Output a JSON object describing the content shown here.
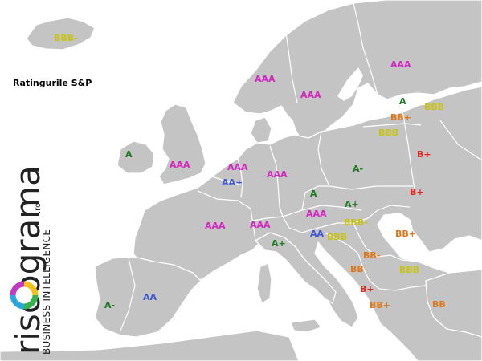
{
  "map": {
    "title": "Ratingurile S&P",
    "colors": {
      "AAA": "#d129c0",
      "AA": "#3e56d6",
      "A": "#1b7a22",
      "BBB": "#c7c217",
      "BB": "#e07818",
      "B": "#e0261e",
      "land": "#c4c4c4",
      "border": "#ffffff"
    },
    "ratings": [
      {
        "country": "Iceland",
        "label": "BBB-",
        "cls": "BBB"
      },
      {
        "country": "Norway",
        "label": "AAA",
        "cls": "AAA"
      },
      {
        "country": "Sweden",
        "label": "AAA",
        "cls": "AAA"
      },
      {
        "country": "Finland",
        "label": "AAA",
        "cls": "AAA"
      },
      {
        "country": "Estonia",
        "label": "A",
        "cls": "A"
      },
      {
        "country": "Latvia",
        "label": "BBB",
        "cls": "BBB"
      },
      {
        "country": "Lithuania",
        "label": "BB+",
        "cls": "BB"
      },
      {
        "country": "Kaliningrad",
        "label": "BBB",
        "cls": "BBB"
      },
      {
        "country": "Belarus",
        "label": "B+",
        "cls": "B"
      },
      {
        "country": "Ireland",
        "label": "A",
        "cls": "A"
      },
      {
        "country": "United Kingdom",
        "label": "AAA",
        "cls": "AAA"
      },
      {
        "country": "Netherlands",
        "label": "AAA",
        "cls": "AAA"
      },
      {
        "country": "Denmark/Germany",
        "label": "AAA",
        "cls": "AAA"
      },
      {
        "country": "Belgium",
        "label": "AA+",
        "cls": "AA"
      },
      {
        "country": "Poland",
        "label": "A-",
        "cls": "A"
      },
      {
        "country": "Ukraine",
        "label": "B+",
        "cls": "B"
      },
      {
        "country": "Czech Republic",
        "label": "A",
        "cls": "A"
      },
      {
        "country": "Slovakia",
        "label": "A+",
        "cls": "A"
      },
      {
        "country": "France",
        "label": "AAA",
        "cls": "AAA"
      },
      {
        "country": "Switzerland",
        "label": "AAA",
        "cls": "AAA"
      },
      {
        "country": "Austria",
        "label": "AAA",
        "cls": "AAA"
      },
      {
        "country": "Hungary",
        "label": "BBB-",
        "cls": "BBB"
      },
      {
        "country": "Slovenia",
        "label": "AA",
        "cls": "AA"
      },
      {
        "country": "Croatia",
        "label": "BBB",
        "cls": "BBB"
      },
      {
        "country": "Romania",
        "label": "BB+",
        "cls": "BB"
      },
      {
        "country": "Italy",
        "label": "A+",
        "cls": "A"
      },
      {
        "country": "Serbia",
        "label": "BB-",
        "cls": "BB"
      },
      {
        "country": "Montenegro",
        "label": "BB",
        "cls": "BB"
      },
      {
        "country": "Bulgaria",
        "label": "BBB",
        "cls": "BBB"
      },
      {
        "country": "Albania",
        "label": "B+",
        "cls": "B"
      },
      {
        "country": "Greece",
        "label": "BB+",
        "cls": "BB"
      },
      {
        "country": "Turkey",
        "label": "BB",
        "cls": "BB"
      },
      {
        "country": "Spain",
        "label": "AA",
        "cls": "AA"
      },
      {
        "country": "Portugal",
        "label": "A-",
        "cls": "A"
      }
    ]
  },
  "logo": {
    "wordmark": "riscograma",
    "domain": ".ro",
    "tagline": "BUSINESS INTELLIGENCE"
  }
}
